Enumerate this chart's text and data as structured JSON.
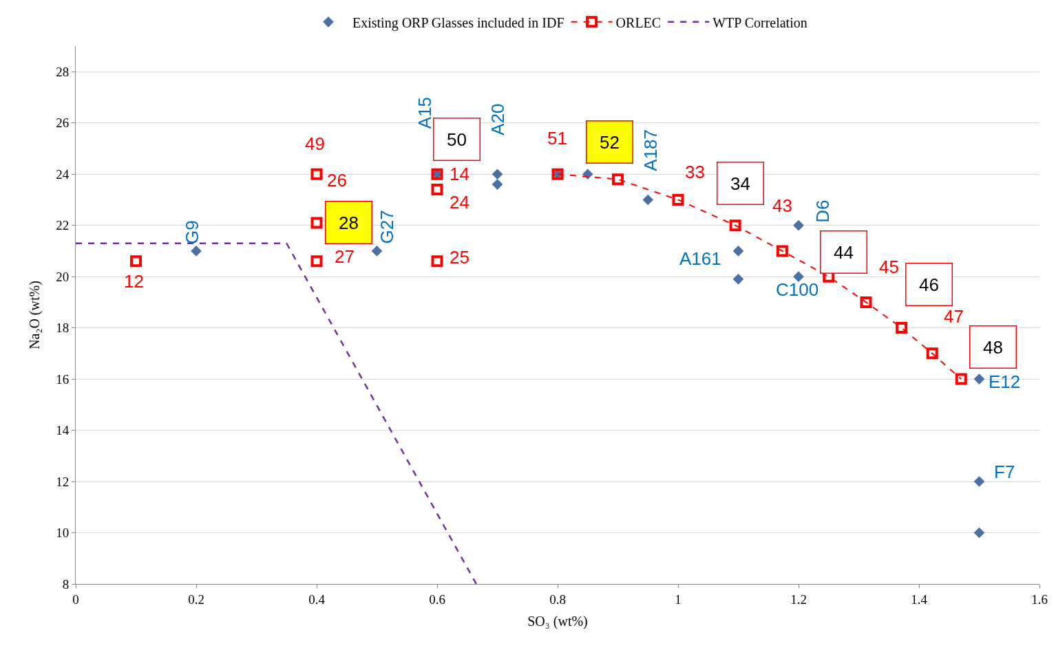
{
  "chart_data": {
    "type": "scatter",
    "xlabel": "SO₃ (wt%)",
    "ylabel": "Na₂O (wt%)",
    "xlim": [
      0,
      1.6
    ],
    "xticks": [
      0,
      0.2,
      0.4,
      0.6,
      0.8,
      1,
      1.2,
      1.4,
      1.6
    ],
    "ylim": [
      8,
      29
    ],
    "yticks": [
      8,
      10,
      12,
      14,
      16,
      18,
      20,
      22,
      24,
      26,
      28
    ],
    "grid": "y",
    "legend": "top",
    "series": [
      {
        "name": "Existing ORP Glasses included in IDF",
        "marker": "diamond",
        "color": "#4a6fa5",
        "x": [
          0.2,
          0.5,
          0.6,
          0.7,
          0.7,
          0.8,
          0.85,
          0.95,
          1.1,
          1.1,
          1.2,
          1.2,
          1.5,
          1.5,
          1.5
        ],
        "values": [
          21,
          21,
          24,
          24,
          23.6,
          24,
          24,
          23,
          21,
          19.9,
          22,
          20,
          16,
          12,
          10
        ]
      },
      {
        "name": "ORLEC",
        "type": "line",
        "marker": "square",
        "line_style": "dashed",
        "color": "#ff0000",
        "x": [
          0.8,
          0.9,
          1.0,
          1.095,
          1.173,
          1.25,
          1.312,
          1.371,
          1.422,
          1.47
        ],
        "values": [
          24,
          23.8,
          23,
          22,
          21,
          20,
          19,
          18,
          17,
          16
        ]
      },
      {
        "marker": "square",
        "color": "#ff0000",
        "x": [
          0.1,
          0.4,
          0.4,
          0.4,
          0.6,
          0.6,
          0.6
        ],
        "values": [
          20.6,
          24,
          22.1,
          20.6,
          24,
          23.4,
          20.6
        ]
      },
      {
        "name": "WTP Correlation",
        "type": "line",
        "marker": "none",
        "line_style": "dashed",
        "color": "#7030a0",
        "x": [
          0,
          0.35,
          0.665
        ],
        "values": [
          21.3,
          21.3,
          8
        ]
      }
    ],
    "annotations": [
      {
        "text": "G9",
        "x": 0.2,
        "y": 21
      },
      {
        "text": "G27",
        "x": 0.5,
        "y": 21
      },
      {
        "text": "A15",
        "x": 0.6,
        "y": 24
      },
      {
        "text": "A20",
        "x": 0.7,
        "y": 24
      },
      {
        "text": "A187",
        "x": 0.95,
        "y": 23
      },
      {
        "text": "A161",
        "x": 1.1,
        "y": 21
      },
      {
        "text": "D6",
        "x": 1.2,
        "y": 22
      },
      {
        "text": "C100",
        "x": 1.2,
        "y": 20
      },
      {
        "text": "E12",
        "x": 1.5,
        "y": 16
      },
      {
        "text": "F7",
        "x": 1.5,
        "y": 12
      },
      {
        "text": "51",
        "x": 0.8,
        "y": 24
      },
      {
        "text": "52",
        "x": 0.9,
        "y": 23.8
      },
      {
        "text": "33",
        "x": 1.0,
        "y": 23
      },
      {
        "text": "34",
        "x": 1.095,
        "y": 22
      },
      {
        "text": "43",
        "x": 1.173,
        "y": 21
      },
      {
        "text": "44",
        "x": 1.25,
        "y": 20
      },
      {
        "text": "45",
        "x": 1.312,
        "y": 19
      },
      {
        "text": "46",
        "x": 1.371,
        "y": 18
      },
      {
        "text": "47",
        "x": 1.422,
        "y": 17
      },
      {
        "text": "48",
        "x": 1.47,
        "y": 16
      },
      {
        "text": "12",
        "x": 0.1,
        "y": 20.6
      },
      {
        "text": "49",
        "x": 0.4,
        "y": 24
      },
      {
        "text": "26",
        "x": 0.4,
        "y": 24
      },
      {
        "text": "28",
        "x": 0.4,
        "y": 22.1
      },
      {
        "text": "27",
        "x": 0.4,
        "y": 20.6
      },
      {
        "text": "50",
        "x": 0.6,
        "y": 24
      },
      {
        "text": "14",
        "x": 0.6,
        "y": 24
      },
      {
        "text": "24",
        "x": 0.6,
        "y": 23.4
      },
      {
        "text": "25",
        "x": 0.6,
        "y": 20.6
      }
    ]
  }
}
